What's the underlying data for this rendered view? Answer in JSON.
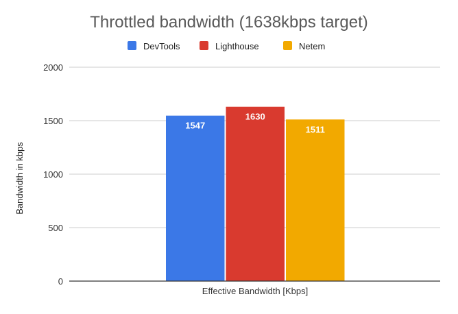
{
  "chart_data": {
    "type": "bar",
    "title": "Throttled bandwidth (1638kbps target)",
    "xlabel": "Effective Bandwidth [Kbps]",
    "ylabel": "Bandwidth in kbps",
    "categories": [
      "Effective Bandwidth [Kbps]"
    ],
    "series": [
      {
        "name": "DevTools",
        "values": [
          1547
        ],
        "color": "#3b78e7"
      },
      {
        "name": "Lighthouse",
        "values": [
          1630
        ],
        "color": "#d93a2f"
      },
      {
        "name": "Netem",
        "values": [
          1511
        ],
        "color": "#f2a900"
      }
    ],
    "data_labels": [
      "1547",
      "1630",
      "1511"
    ],
    "ylim": [
      0,
      2000
    ],
    "yticks": [
      "0",
      "500",
      "1000",
      "1500",
      "2000"
    ],
    "grid": true,
    "legend_position": "top"
  }
}
